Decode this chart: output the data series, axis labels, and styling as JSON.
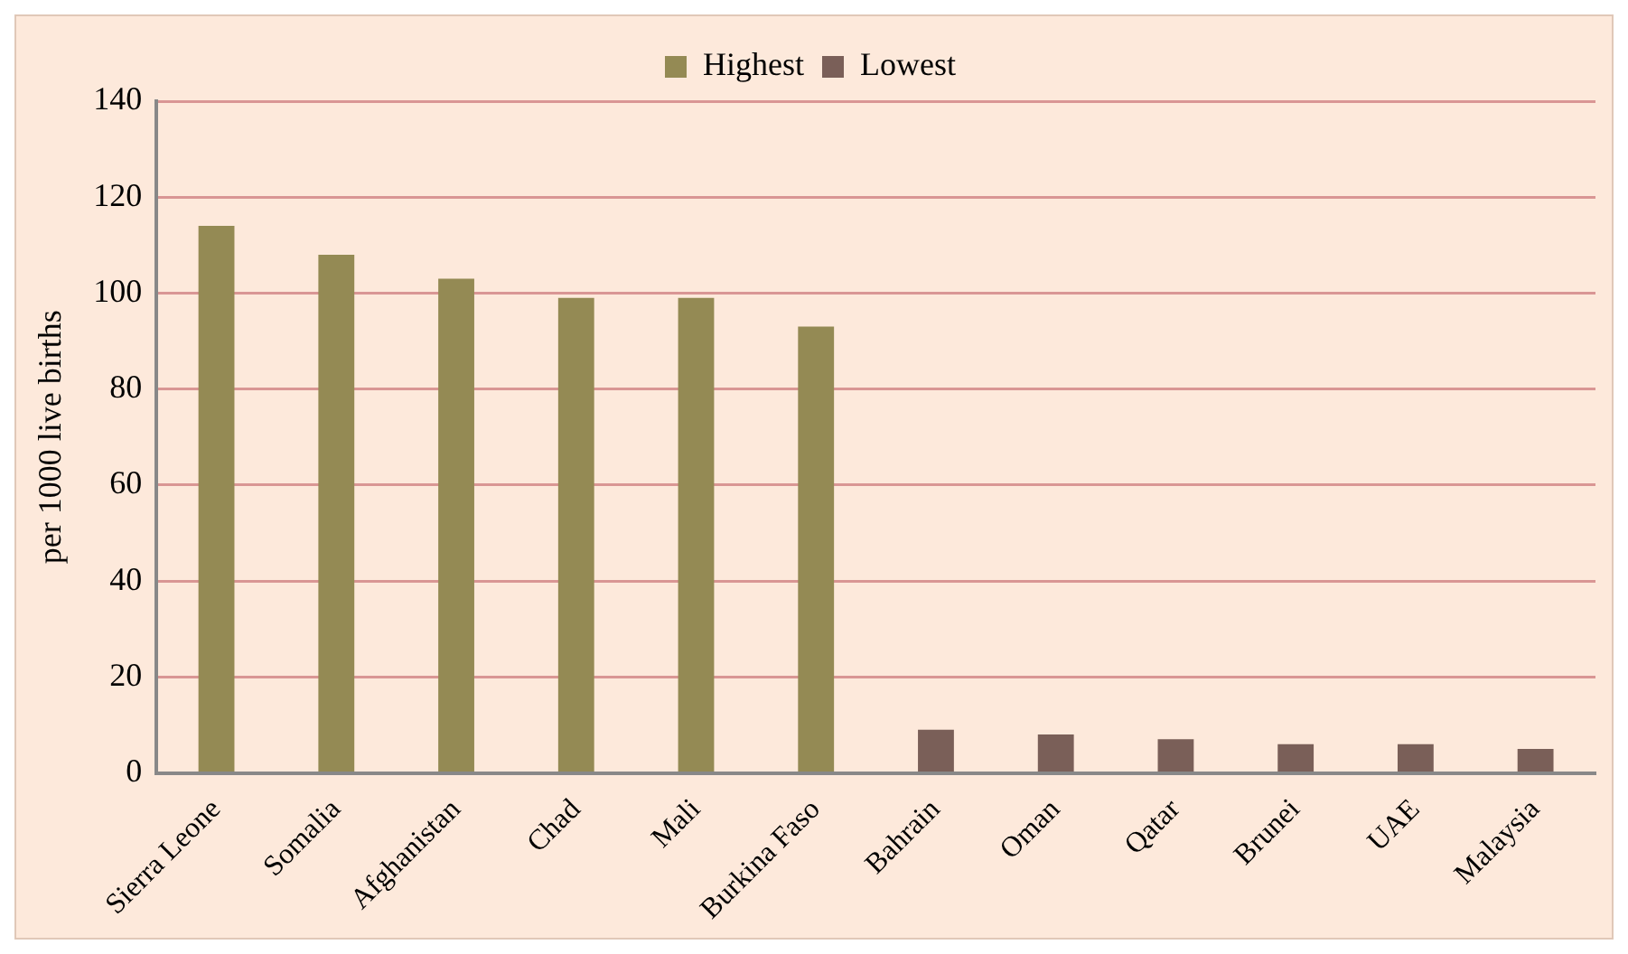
{
  "chart_data": {
    "type": "bar",
    "ylabel": "per 1000 live births",
    "categories": [
      "Sierra Leone",
      "Somalia",
      "Afghanistan",
      "Chad",
      "Mali",
      "Burkina Faso",
      "Bahrain",
      "Oman",
      "Qatar",
      "Brunei",
      "UAE",
      "Malaysia"
    ],
    "series": [
      {
        "name": "Highest",
        "color": "#948a54",
        "values": [
          114,
          108,
          103,
          99,
          99,
          93,
          null,
          null,
          null,
          null,
          null,
          null
        ]
      },
      {
        "name": "Lowest",
        "color": "#7a5f58",
        "values": [
          null,
          null,
          null,
          null,
          null,
          null,
          9,
          8,
          7,
          6,
          6,
          5
        ]
      }
    ],
    "ylim": [
      0,
      140
    ],
    "yticks": [
      0,
      20,
      40,
      60,
      80,
      100,
      120,
      140
    ],
    "grid": "y",
    "legend": "top"
  }
}
